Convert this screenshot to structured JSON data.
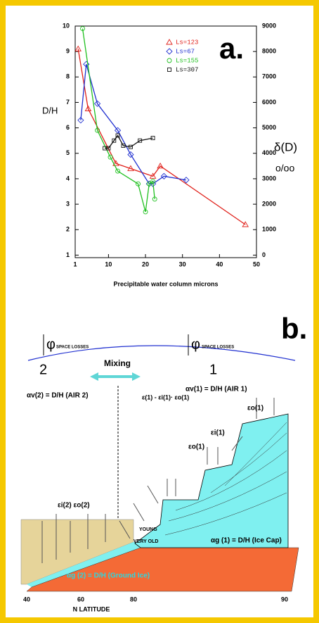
{
  "chart_data": {
    "type": "line",
    "label": "a.",
    "y_label": "D/H",
    "y2_label": "δ(D)",
    "y2_unit": "o/oo",
    "x_label": "Precipitable water column  microns",
    "xlim": [
      1,
      50
    ],
    "xticks": [
      1,
      10,
      20,
      30,
      40,
      50
    ],
    "ylim": [
      0.9,
      10
    ],
    "yticks": [
      1,
      2,
      3,
      4,
      5,
      6,
      7,
      8,
      9,
      10
    ],
    "y2lim": [
      -100,
      9000
    ],
    "y2ticks": [
      0,
      1000,
      2000,
      3000,
      4000,
      5000,
      6000,
      7000,
      8000,
      9000
    ],
    "series": [
      {
        "name": "Ls=123",
        "color": "#e0201a",
        "marker": "triangle",
        "x": [
          1.8,
          4.5,
          12,
          16,
          22,
          24,
          47
        ],
        "values": [
          9.1,
          6.75,
          4.6,
          4.4,
          4.1,
          4.5,
          2.2
        ]
      },
      {
        "name": "Ls=67",
        "color": "#2030d0",
        "marker": "diamond",
        "x": [
          2.5,
          4,
          7,
          12.5,
          16,
          21,
          22,
          25,
          31
        ],
        "values": [
          6.3,
          8.5,
          6.95,
          5.9,
          4.95,
          3.8,
          3.8,
          4.1,
          3.95
        ]
      },
      {
        "name": "Ls=155",
        "color": "#20c020",
        "marker": "circle",
        "x": [
          3,
          7,
          10.5,
          12.5,
          18,
          20,
          21,
          22,
          22.5
        ],
        "values": [
          9.9,
          5.9,
          4.85,
          4.3,
          3.8,
          2.7,
          3.8,
          3.9,
          3.2
        ]
      },
      {
        "name": "Ls=307",
        "color": "#111111",
        "marker": "square",
        "x": [
          9,
          10,
          11.5,
          12.5,
          14,
          16,
          18.5,
          22
        ],
        "values": [
          5.2,
          5.2,
          5.5,
          5.7,
          5.3,
          5.25,
          5.5,
          5.6
        ]
      }
    ]
  },
  "diagram": {
    "label": "b.",
    "space_losses_left": "φ",
    "space_losses_left_sub": "SPACE LOSSES",
    "space_losses_right": "φ",
    "space_losses_right_sub": "SPACE LOSSES",
    "mixing": "Mixing",
    "air2": "2",
    "air1": "1",
    "alpha_v2": "αv(2) = D/H (AIR 2)",
    "alpha_v1": "αv(1) = D/H (AIR 1)",
    "epsilon_eq": "ε(1) - εi(1)· εo(1)",
    "eps_o1_top": "εo(1)",
    "eps_i1": "εi(1)",
    "eps_o1": "εo(1)",
    "eps2": "εi(2) εo(2)",
    "young": "YOUNG",
    "very_old": "VERY OLD",
    "alpha_g1": "αg (1) = D/H (Ice Cap)",
    "alpha_g2": "αg (2) = D/H (Ground Ice)",
    "lat_ticks": [
      "40",
      "60",
      "80",
      "90"
    ],
    "lat_label": "N LATITUDE"
  }
}
